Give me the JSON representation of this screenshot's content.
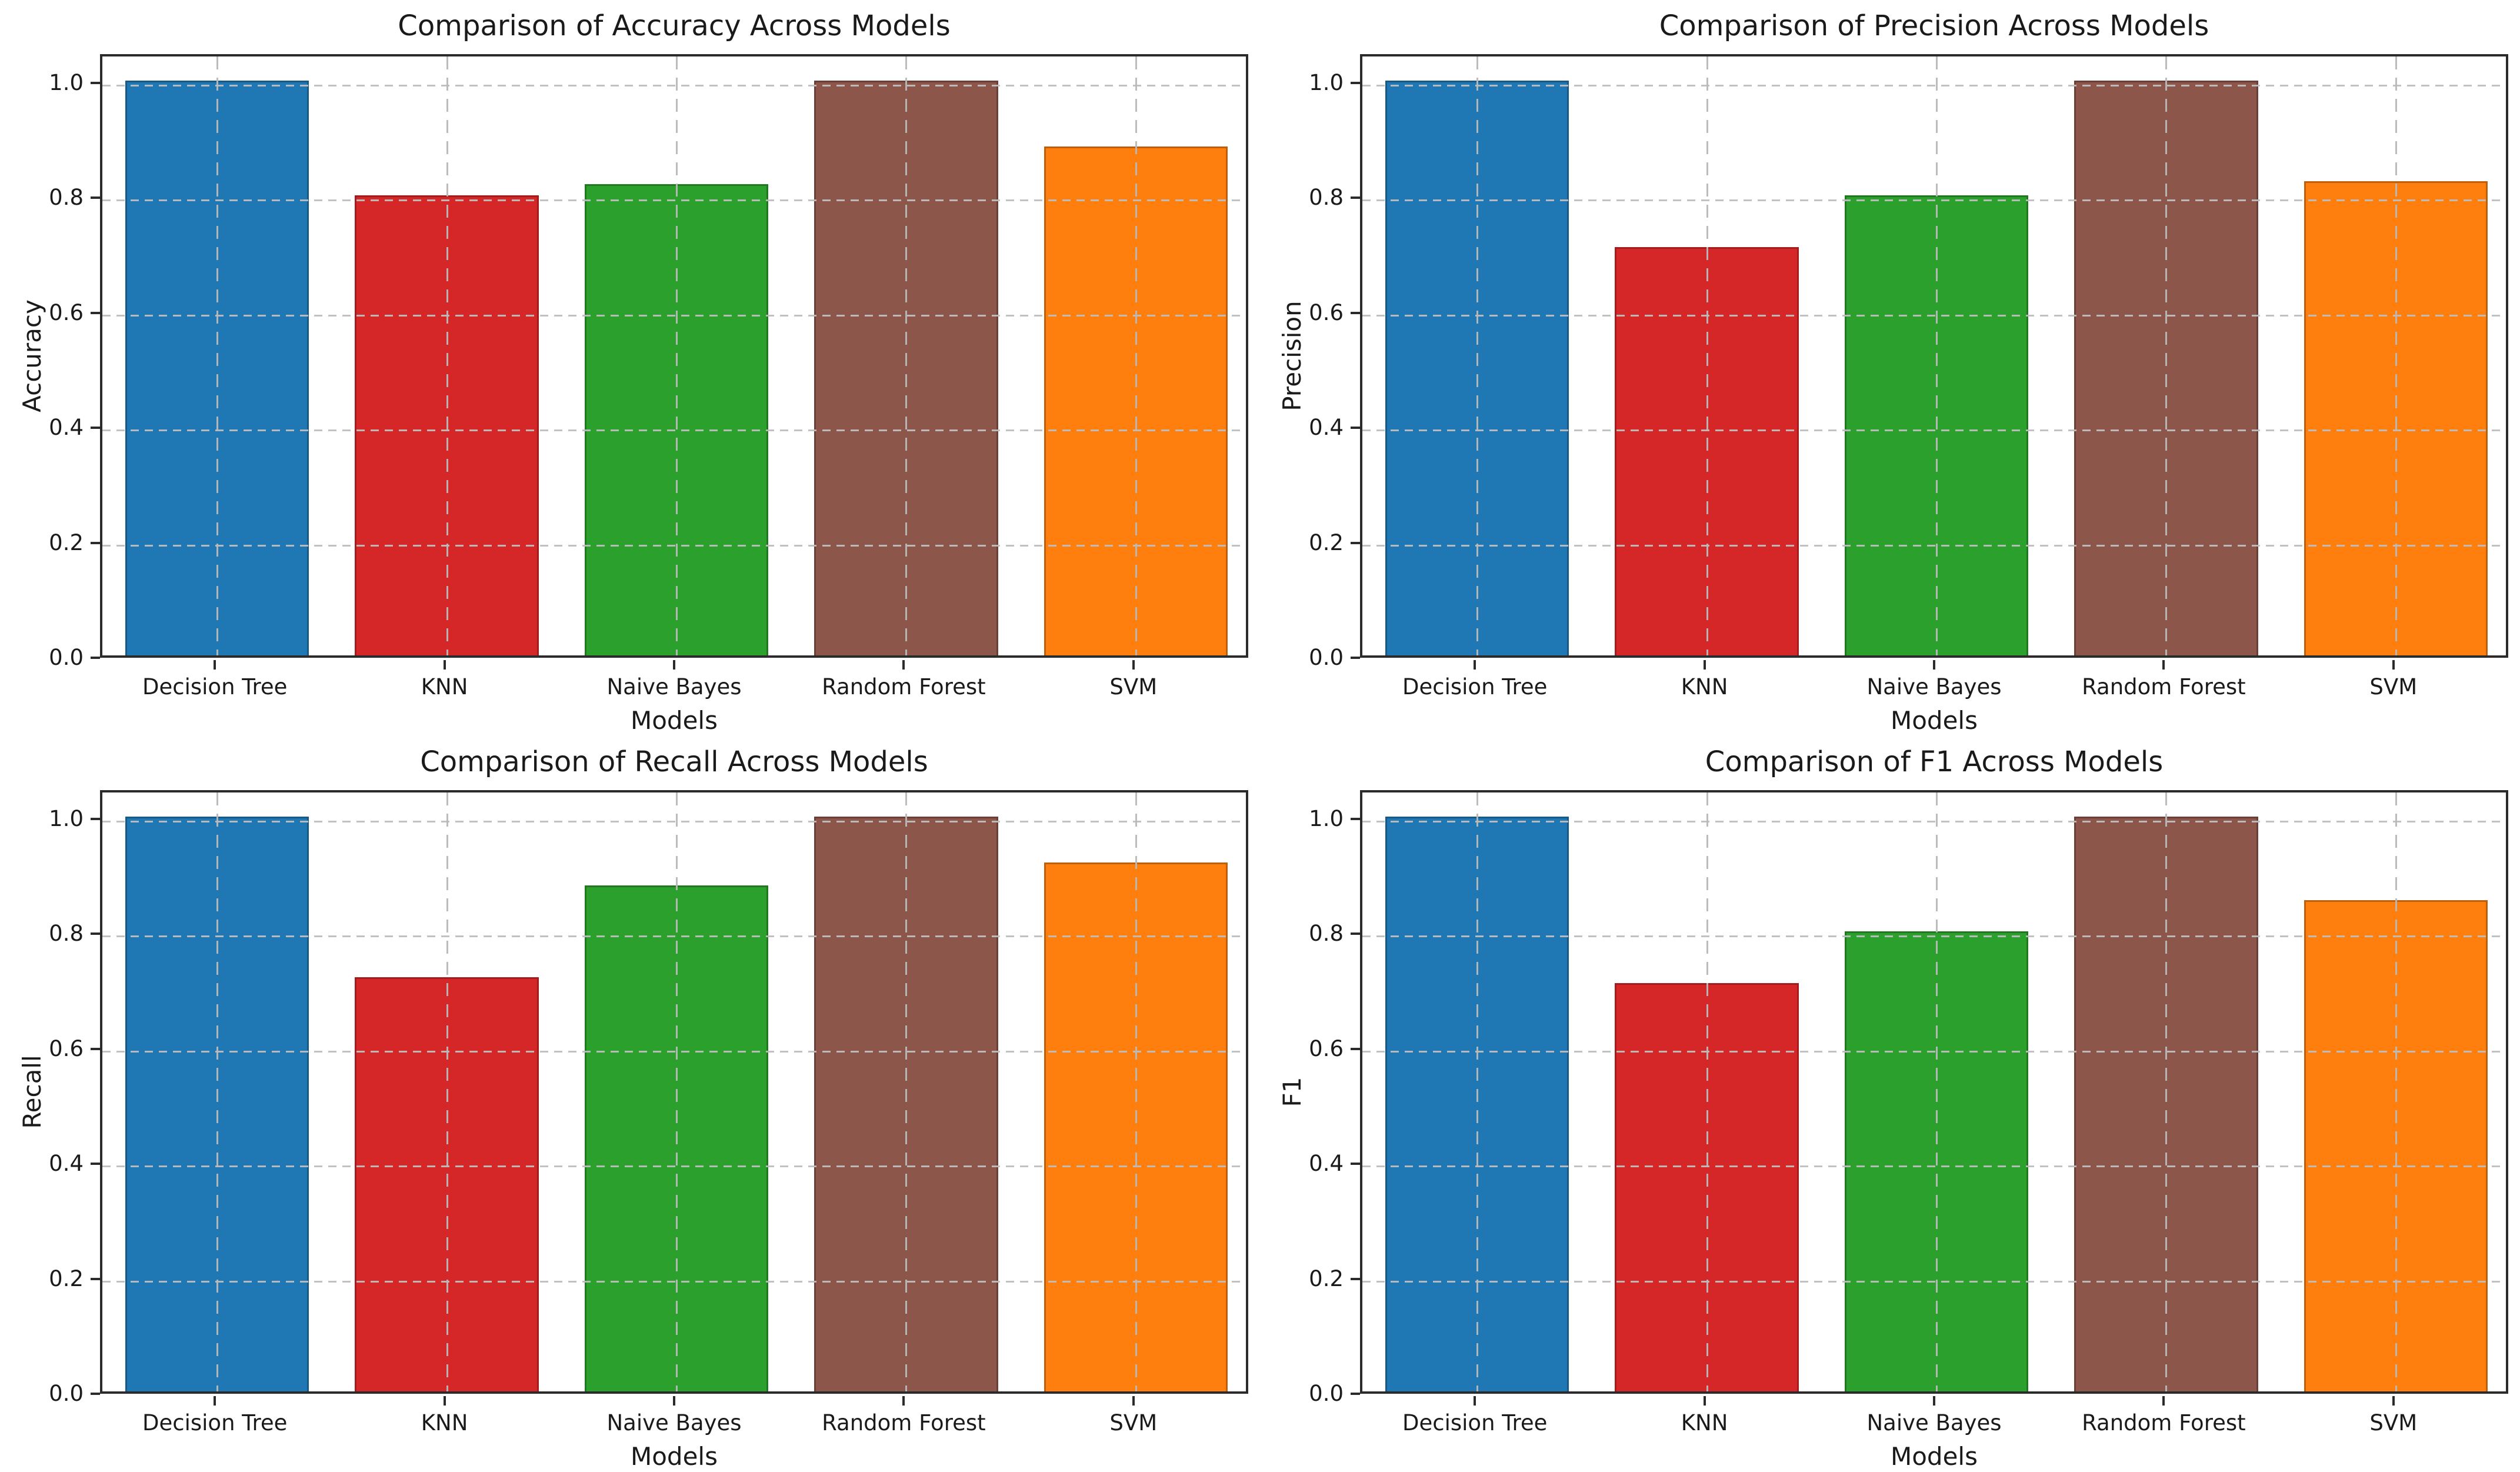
{
  "figure": {
    "background": "#ffffff",
    "grid_color": "#bebebe",
    "spine_color": "#2b2b2b",
    "text_color": "#1a1a1a"
  },
  "chart_data": [
    {
      "type": "bar",
      "title": "Comparison of Accuracy Across Models",
      "xlabel": "Models",
      "ylabel": "Accuracy",
      "categories": [
        "Decision Tree",
        "KNN",
        "Naive Bayes",
        "Random Forest",
        "SVM"
      ],
      "values": [
        1.0,
        0.8,
        0.82,
        1.0,
        0.885
      ],
      "bar_colors": [
        "#1f77b4",
        "#d62728",
        "#2ca02c",
        "#8c564b",
        "#ff7f0e"
      ],
      "bar_edge_colors": [
        "#175a88",
        "#a31d1e",
        "#217821",
        "#693f37",
        "#c05f0a"
      ],
      "ylim": [
        0,
        1.05
      ],
      "yticks": [
        0.0,
        0.2,
        0.4,
        0.6,
        0.8,
        1.0
      ],
      "grid": true,
      "legend": null
    },
    {
      "type": "bar",
      "title": "Comparison of Precision Across Models",
      "xlabel": "Models",
      "ylabel": "Precision",
      "categories": [
        "Decision Tree",
        "KNN",
        "Naive Bayes",
        "Random Forest",
        "SVM"
      ],
      "values": [
        1.0,
        0.71,
        0.8,
        1.0,
        0.825
      ],
      "bar_colors": [
        "#1f77b4",
        "#d62728",
        "#2ca02c",
        "#8c564b",
        "#ff7f0e"
      ],
      "bar_edge_colors": [
        "#175a88",
        "#a31d1e",
        "#217821",
        "#693f37",
        "#c05f0a"
      ],
      "ylim": [
        0,
        1.05
      ],
      "yticks": [
        0.0,
        0.2,
        0.4,
        0.6,
        0.8,
        1.0
      ],
      "grid": true,
      "legend": null
    },
    {
      "type": "bar",
      "title": "Comparison of Recall Across Models",
      "xlabel": "Models",
      "ylabel": "Recall",
      "categories": [
        "Decision Tree",
        "KNN",
        "Naive Bayes",
        "Random Forest",
        "SVM"
      ],
      "values": [
        1.0,
        0.72,
        0.88,
        1.0,
        0.92
      ],
      "bar_colors": [
        "#1f77b4",
        "#d62728",
        "#2ca02c",
        "#8c564b",
        "#ff7f0e"
      ],
      "bar_edge_colors": [
        "#175a88",
        "#a31d1e",
        "#217821",
        "#693f37",
        "#c05f0a"
      ],
      "ylim": [
        0,
        1.05
      ],
      "yticks": [
        0.0,
        0.2,
        0.4,
        0.6,
        0.8,
        1.0
      ],
      "grid": true,
      "legend": null
    },
    {
      "type": "bar",
      "title": "Comparison of F1 Across Models",
      "xlabel": "Models",
      "ylabel": "F1",
      "categories": [
        "Decision Tree",
        "KNN",
        "Naive Bayes",
        "Random Forest",
        "SVM"
      ],
      "values": [
        1.0,
        0.71,
        0.8,
        1.0,
        0.855
      ],
      "bar_colors": [
        "#1f77b4",
        "#d62728",
        "#2ca02c",
        "#8c564b",
        "#ff7f0e"
      ],
      "bar_edge_colors": [
        "#175a88",
        "#a31d1e",
        "#217821",
        "#693f37",
        "#c05f0a"
      ],
      "ylim": [
        0,
        1.05
      ],
      "yticks": [
        0.0,
        0.2,
        0.4,
        0.6,
        0.8,
        1.0
      ],
      "grid": true,
      "legend": null
    }
  ]
}
